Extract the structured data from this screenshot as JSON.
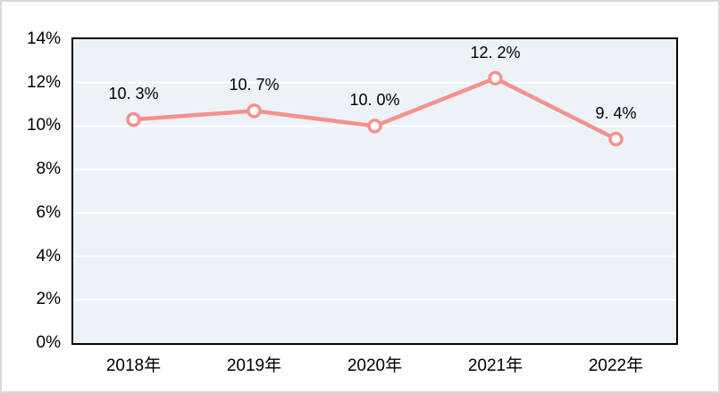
{
  "chart_data": {
    "type": "line",
    "title": "",
    "xlabel": "",
    "ylabel": "",
    "categories": [
      "2018年",
      "2019年",
      "2020年",
      "2021年",
      "2022年"
    ],
    "values": [
      10.3,
      10.7,
      10.0,
      12.2,
      9.4
    ],
    "data_labels": [
      "10. 3%",
      "10. 7%",
      "10. 0%",
      "12. 2%",
      "9. 4%"
    ],
    "y_ticks": [
      {
        "value": 0,
        "label": "0%"
      },
      {
        "value": 2,
        "label": "2%"
      },
      {
        "value": 4,
        "label": "4%"
      },
      {
        "value": 6,
        "label": "6%"
      },
      {
        "value": 8,
        "label": "8%"
      },
      {
        "value": 10,
        "label": "10%"
      },
      {
        "value": 12,
        "label": "12%"
      },
      {
        "value": 14,
        "label": "14%"
      }
    ],
    "ylim": [
      0,
      14
    ],
    "grid": true,
    "legend_position": "none",
    "colors": {
      "line": "#F5918B",
      "marker_fill": "#FFFFFF",
      "marker_stroke": "#F5918B",
      "plot_background": "#ECF2F8",
      "gridline": "#FFFFFF",
      "axis_border": "#000000",
      "frame_border": "#D9D9D9",
      "text": "#000000"
    }
  }
}
